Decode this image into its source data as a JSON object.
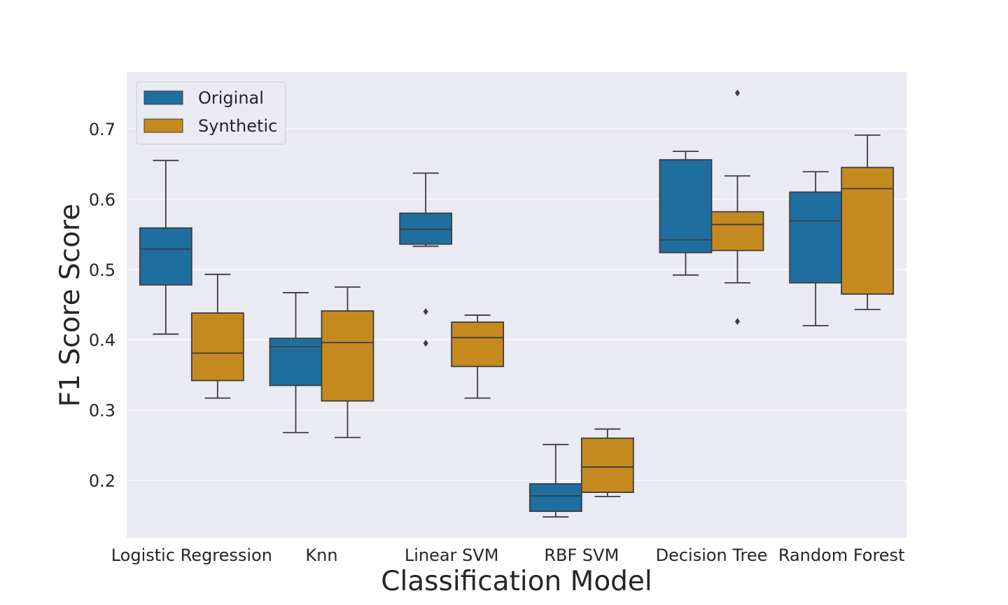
{
  "chart_data": {
    "type": "box",
    "title": "",
    "xlabel": "Classification Model",
    "ylabel": "F1 Score Score",
    "ylim": [
      0.12,
      0.78
    ],
    "yticks": [
      0.2,
      0.3,
      0.4,
      0.5,
      0.6,
      0.7
    ],
    "yticklabels": [
      "0.2",
      "0.3",
      "0.4",
      "0.5",
      "0.6",
      "0.7"
    ],
    "grid": true,
    "legend_position": "top-left",
    "categories": [
      "Logistic Regression",
      "Knn",
      "Linear SVM",
      "RBF SVM",
      "Decision Tree",
      "Random Forest"
    ],
    "series": [
      {
        "name": "Original",
        "color": "#1f6ea0",
        "boxes": [
          {
            "whislo": 0.408,
            "q1": 0.478,
            "med": 0.529,
            "q3": 0.559,
            "whishi": 0.655,
            "fliers": []
          },
          {
            "whislo": 0.268,
            "q1": 0.335,
            "med": 0.39,
            "q3": 0.402,
            "whishi": 0.467,
            "fliers": []
          },
          {
            "whislo": 0.533,
            "q1": 0.536,
            "med": 0.557,
            "q3": 0.58,
            "whishi": 0.637,
            "fliers": [
              0.44,
              0.395
            ]
          },
          {
            "whislo": 0.148,
            "q1": 0.156,
            "med": 0.178,
            "q3": 0.195,
            "whishi": 0.251,
            "fliers": []
          },
          {
            "whislo": 0.492,
            "q1": 0.524,
            "med": 0.542,
            "q3": 0.656,
            "whishi": 0.668,
            "fliers": []
          },
          {
            "whislo": 0.42,
            "q1": 0.481,
            "med": 0.569,
            "q3": 0.61,
            "whishi": 0.639,
            "fliers": []
          }
        ]
      },
      {
        "name": "Synthetic",
        "color": "#c58a1f",
        "boxes": [
          {
            "whislo": 0.317,
            "q1": 0.342,
            "med": 0.381,
            "q3": 0.438,
            "whishi": 0.493,
            "fliers": []
          },
          {
            "whislo": 0.261,
            "q1": 0.313,
            "med": 0.396,
            "q3": 0.441,
            "whishi": 0.475,
            "fliers": []
          },
          {
            "whislo": 0.317,
            "q1": 0.362,
            "med": 0.403,
            "q3": 0.425,
            "whishi": 0.435,
            "fliers": []
          },
          {
            "whislo": 0.177,
            "q1": 0.183,
            "med": 0.219,
            "q3": 0.26,
            "whishi": 0.273,
            "fliers": []
          },
          {
            "whislo": 0.481,
            "q1": 0.527,
            "med": 0.564,
            "q3": 0.582,
            "whishi": 0.633,
            "fliers": [
              0.426,
              0.751
            ]
          },
          {
            "whislo": 0.443,
            "q1": 0.465,
            "med": 0.615,
            "q3": 0.645,
            "whishi": 0.691,
            "fliers": []
          }
        ]
      }
    ]
  }
}
